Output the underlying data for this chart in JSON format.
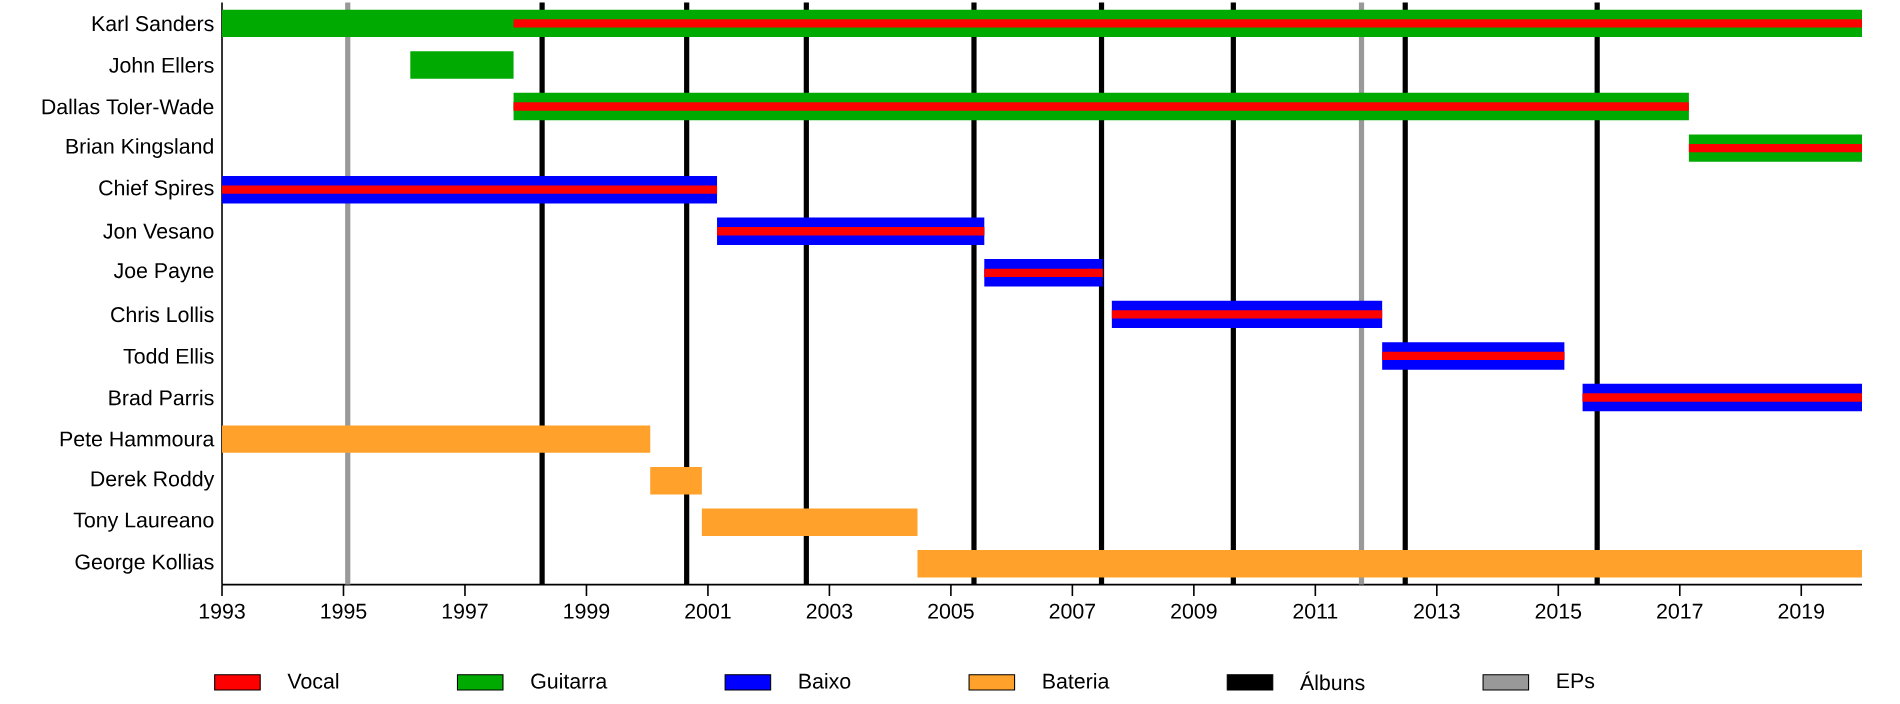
{
  "chart_data": {
    "type": "bar",
    "orientation": "horizontal",
    "legend": "bottom",
    "categories": [
      "Karl Sanders",
      "John Ellers",
      "Dallas Toler-Wade",
      "Brian Kingsland",
      "Chief Spires",
      "Jon Vesano",
      "Joe Payne",
      "Chris Lollis",
      "Todd Ellis",
      "Brad Parris",
      "Pete Hammoura",
      "Derek Roddy",
      "Tony Laureano",
      "George Kollias"
    ],
    "series": [
      {
        "name": "Vocal",
        "color": "#ff0000",
        "base": [
          1997.8,
          null,
          1997.8,
          2017.15,
          1993,
          2001.15,
          2005.55,
          2007.65,
          2012.1,
          2015.4,
          null,
          null,
          null,
          null
        ],
        "values": [
          22.2,
          null,
          19.35,
          2.85,
          8.15,
          4.4,
          1.95,
          4.45,
          3.0,
          4.6,
          null,
          null,
          null,
          null
        ]
      },
      {
        "name": "Guitarra",
        "color": "#00aa00",
        "base": [
          1993,
          1996.1,
          1997.8,
          2017.15,
          null,
          null,
          null,
          null,
          null,
          null,
          null,
          null,
          null,
          null
        ],
        "values": [
          27,
          1.7,
          19.35,
          2.85,
          null,
          null,
          null,
          null,
          null,
          null,
          null,
          null,
          null,
          null
        ]
      },
      {
        "name": "Baixo",
        "color": "#0000ff",
        "base": [
          null,
          null,
          null,
          null,
          1993,
          2001.15,
          2005.55,
          2007.65,
          2012.1,
          2015.4,
          null,
          null,
          null,
          null
        ],
        "values": [
          null,
          null,
          null,
          null,
          8.15,
          4.4,
          1.95,
          4.45,
          3.0,
          4.6,
          null,
          null,
          null,
          null
        ]
      },
      {
        "name": "Bateria",
        "color": "#ffa12a",
        "base": [
          null,
          null,
          null,
          null,
          null,
          null,
          null,
          null,
          null,
          null,
          1993,
          2000.05,
          2000.9,
          2004.45
        ],
        "values": [
          null,
          null,
          null,
          null,
          null,
          null,
          null,
          null,
          null,
          null,
          7.05,
          0.85,
          3.55,
          15.55
        ]
      }
    ],
    "xlim": [
      1993,
      2020
    ],
    "xticks": [
      1993,
      1995,
      1997,
      1999,
      2001,
      2003,
      2005,
      2007,
      2009,
      2011,
      2013,
      2015,
      2017,
      2019
    ],
    "ref_lines": [
      {
        "axis": "x",
        "value": 1998.27,
        "label": "Álbuns",
        "color": "#000000"
      },
      {
        "axis": "x",
        "value": 2000.65,
        "color": "#000000"
      },
      {
        "axis": "x",
        "value": 2002.62,
        "color": "#000000"
      },
      {
        "axis": "x",
        "value": 2005.38,
        "color": "#000000"
      },
      {
        "axis": "x",
        "value": 2007.48,
        "color": "#000000"
      },
      {
        "axis": "x",
        "value": 2009.65,
        "color": "#000000"
      },
      {
        "axis": "x",
        "value": 2012.48,
        "color": "#000000"
      },
      {
        "axis": "x",
        "value": 2015.64,
        "color": "#000000"
      },
      {
        "axis": "x",
        "value": 1995.07,
        "label": "EPs",
        "color": "#999999"
      },
      {
        "axis": "x",
        "value": 2011.76,
        "color": "#999999"
      }
    ]
  }
}
